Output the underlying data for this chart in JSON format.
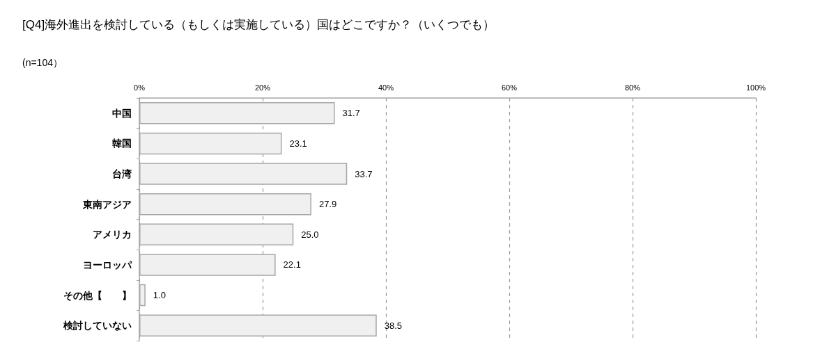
{
  "chart_data": {
    "type": "bar",
    "orientation": "horizontal",
    "title": "[Q4]海外進出を検討している（もしくは実施している）国はどこですか？（いくつでも）",
    "subtitle": "(n=104）",
    "categories": [
      "中国",
      "韓国",
      "台湾",
      "東南アジア",
      "アメリカ",
      "ヨーロッパ",
      "その他【　　】",
      "検討していない"
    ],
    "values": [
      31.7,
      23.1,
      33.7,
      27.9,
      25.0,
      22.1,
      1.0,
      38.5
    ],
    "value_labels": [
      "31.7",
      "23.1",
      "33.7",
      "27.9",
      "25.0",
      "22.1",
      "1.0",
      "38.5"
    ],
    "color": "#f0f0f0",
    "xlim": [
      0,
      100
    ],
    "xticks": [
      {
        "value": 0,
        "label": "0%"
      },
      {
        "value": 20,
        "label": "20%"
      },
      {
        "value": 40,
        "label": "40%"
      },
      {
        "value": 60,
        "label": "60%"
      },
      {
        "value": 80,
        "label": "80%"
      },
      {
        "value": 100,
        "label": "100%"
      }
    ],
    "grid": "x"
  }
}
